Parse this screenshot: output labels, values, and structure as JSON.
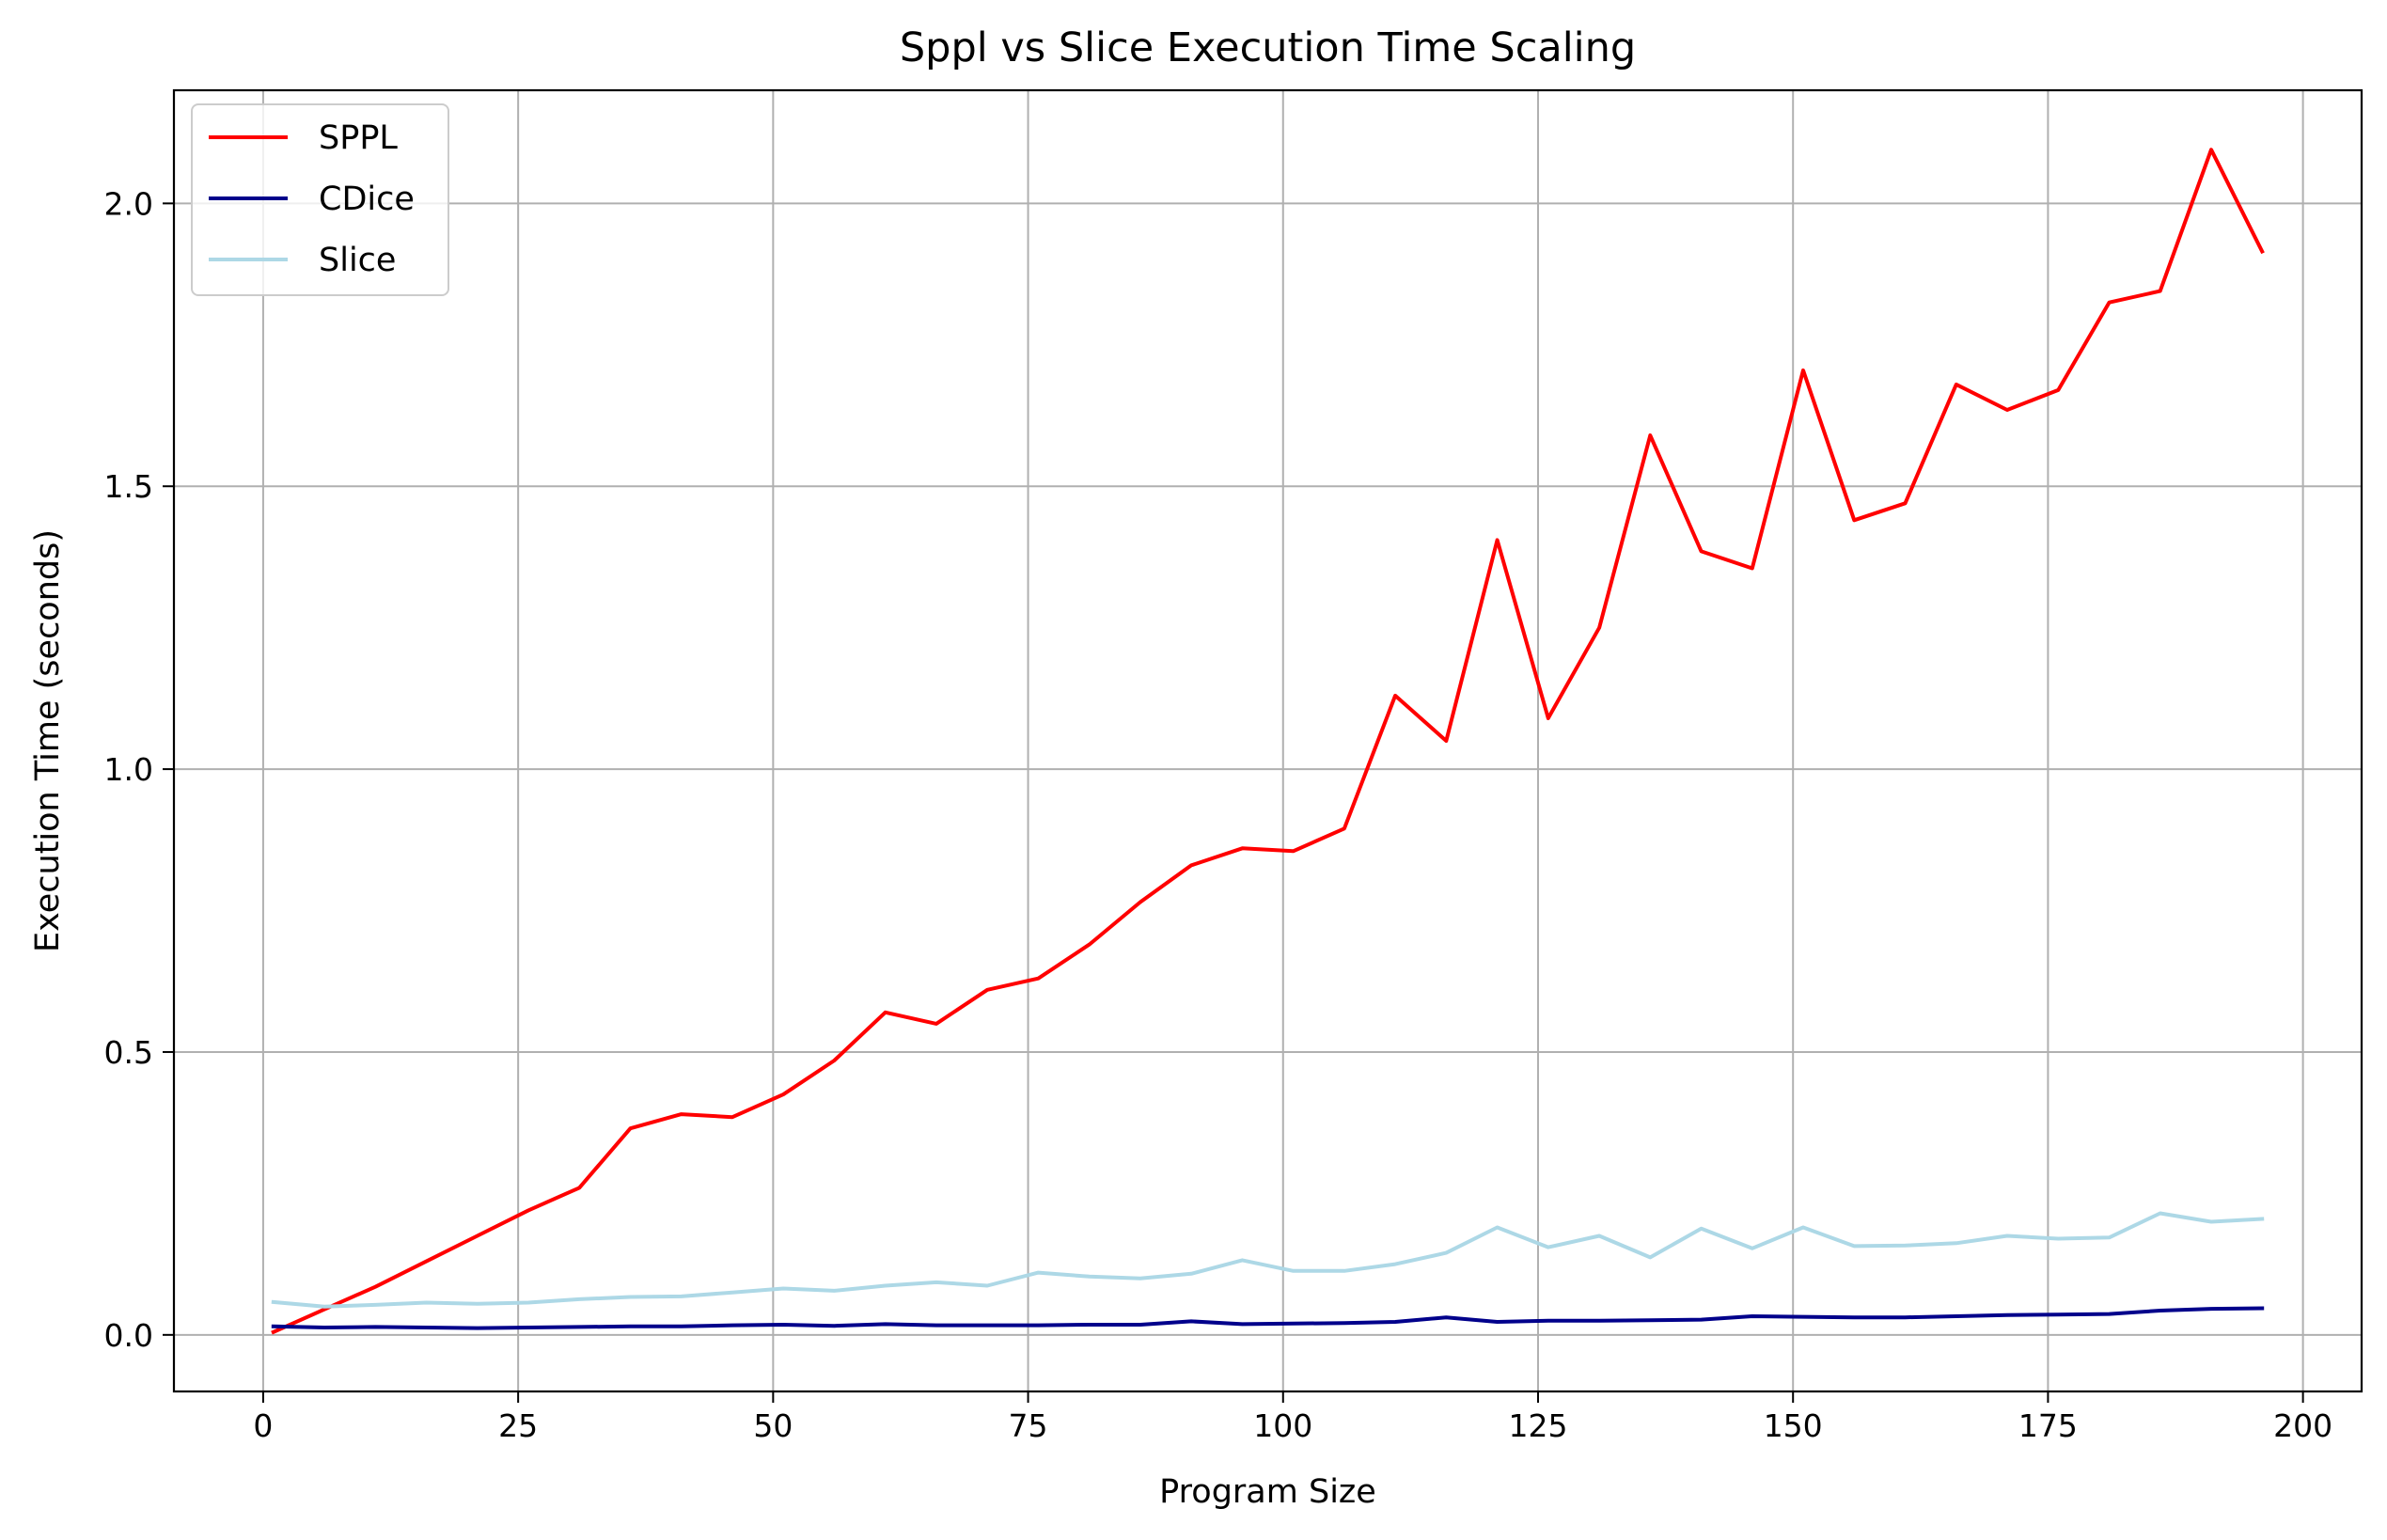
{
  "chart_data": {
    "type": "line",
    "title": "Sppl vs Slice Execution Time Scaling",
    "xlabel": "Program Size",
    "ylabel": "Execution Time (seconds)",
    "xlim": [
      -8.75,
      205.75
    ],
    "ylim": [
      -0.1,
      2.2
    ],
    "xticks": [
      0,
      25,
      50,
      75,
      100,
      125,
      150,
      175,
      200
    ],
    "xtick_labels": [
      "0",
      "25",
      "50",
      "75",
      "100",
      "125",
      "150",
      "175",
      "200"
    ],
    "yticks": [
      0.0,
      0.5,
      1.0,
      1.5,
      2.0
    ],
    "ytick_labels": [
      "0.0",
      "0.5",
      "1.0",
      "1.5",
      "2.0"
    ],
    "grid": true,
    "legend_position": "top-left",
    "x": [
      1,
      6,
      11,
      16,
      21,
      26,
      31,
      36,
      41,
      46,
      51,
      56,
      61,
      66,
      71,
      76,
      81,
      86,
      91,
      96,
      101,
      106,
      111,
      116,
      121,
      126,
      131,
      136,
      141,
      146,
      151,
      156,
      161,
      166,
      171,
      176,
      181,
      186,
      191,
      196
    ],
    "series": [
      {
        "name": "SPPL",
        "color": "#ff0000",
        "values": [
          0.005,
          0.045,
          0.085,
          0.13,
          0.175,
          0.22,
          0.26,
          0.365,
          0.39,
          0.385,
          0.425,
          0.485,
          0.57,
          0.55,
          0.61,
          0.63,
          0.69,
          0.765,
          0.83,
          0.86,
          0.855,
          0.895,
          1.13,
          1.05,
          1.405,
          1.09,
          1.25,
          1.59,
          1.385,
          1.355,
          1.705,
          1.44,
          1.47,
          1.68,
          1.635,
          1.67,
          1.825,
          1.845,
          2.095,
          1.915
        ]
      },
      {
        "name": "CDice",
        "color": "#00008b",
        "values": [
          0.015,
          0.013,
          0.014,
          0.013,
          0.012,
          0.013,
          0.014,
          0.015,
          0.015,
          0.017,
          0.018,
          0.016,
          0.019,
          0.017,
          0.017,
          0.017,
          0.018,
          0.018,
          0.024,
          0.019,
          0.02,
          0.021,
          0.023,
          0.031,
          0.023,
          0.025,
          0.025,
          0.026,
          0.027,
          0.033,
          0.032,
          0.031,
          0.031,
          0.033,
          0.035,
          0.036,
          0.037,
          0.043,
          0.046,
          0.047
        ]
      },
      {
        "name": "Slice",
        "color": "#add8e6",
        "values": [
          0.058,
          0.05,
          0.053,
          0.057,
          0.055,
          0.057,
          0.063,
          0.067,
          0.068,
          0.075,
          0.082,
          0.078,
          0.087,
          0.093,
          0.087,
          0.11,
          0.103,
          0.1,
          0.108,
          0.132,
          0.113,
          0.113,
          0.125,
          0.145,
          0.19,
          0.155,
          0.175,
          0.137,
          0.188,
          0.153,
          0.19,
          0.157,
          0.158,
          0.162,
          0.175,
          0.17,
          0.172,
          0.215,
          0.2,
          0.205
        ]
      }
    ]
  }
}
